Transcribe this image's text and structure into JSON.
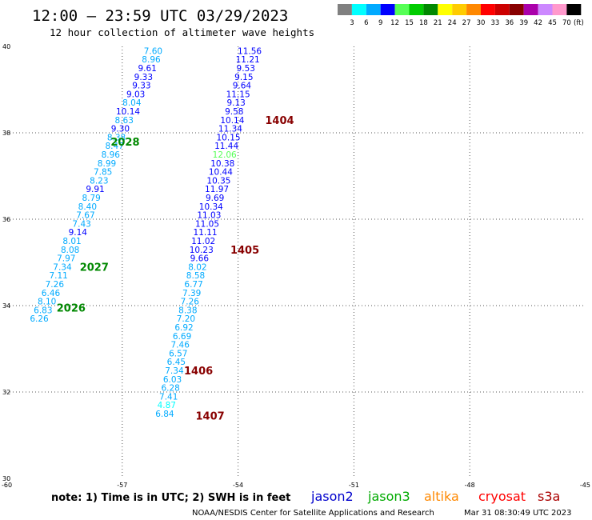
{
  "header": {
    "title": "12:00 — 23:59 UTC 03/29/2023",
    "subtitle": "12 hour collection of altimeter wave heights"
  },
  "colorbar": {
    "labels": [
      "3",
      "6",
      "9",
      "12",
      "15",
      "18",
      "21",
      "24",
      "27",
      "30",
      "33",
      "36",
      "39",
      "42",
      "45",
      "70"
    ],
    "unit": "(ft)",
    "colors": [
      "#808080",
      "#00ffff",
      "#00aaff",
      "#0000ff",
      "#55ff55",
      "#00cc00",
      "#008800",
      "#ffff00",
      "#ffcc00",
      "#ff8800",
      "#ff0000",
      "#cc0000",
      "#880000",
      "#aa00aa",
      "#cc88ff",
      "#ff99cc",
      "#000000"
    ]
  },
  "footer": {
    "note": "note:  1) Time is in UTC; 2) SWH is in feet",
    "credit": "NOAA/NESDIS Center for Satellite Applications and Research",
    "timestamp": "Mar 31 08:30:49 UTC 2023",
    "satellites": [
      {
        "name": "jason2",
        "color": "#0000cc"
      },
      {
        "name": "jason3",
        "color": "#00aa00"
      },
      {
        "name": "altika",
        "color": "#ff8800"
      },
      {
        "name": "cryosat",
        "color": "#ff0000"
      },
      {
        "name": "s3a",
        "color": "#aa0000"
      }
    ]
  },
  "chart_data": {
    "type": "scatter",
    "xlim": [
      -60,
      -45
    ],
    "ylim": [
      30,
      40
    ],
    "x_ticks": [
      "-60",
      "-57",
      "-54",
      "-51",
      "-48",
      "-45"
    ],
    "y_ticks": [
      "30",
      "32",
      "34",
      "36",
      "38",
      "40"
    ],
    "grid": true,
    "series": [
      {
        "track": "A",
        "points": [
          {
            "x": -56.2,
            "y": 39.9,
            "v": "7.60"
          },
          {
            "x": -56.25,
            "y": 39.7,
            "v": "8.96"
          },
          {
            "x": -56.35,
            "y": 39.5,
            "v": "9.61"
          },
          {
            "x": -56.45,
            "y": 39.3,
            "v": "9.33"
          },
          {
            "x": -56.5,
            "y": 39.1,
            "v": "9.33"
          },
          {
            "x": -56.65,
            "y": 38.9,
            "v": "9.03"
          },
          {
            "x": -56.75,
            "y": 38.7,
            "v": "8.04"
          },
          {
            "x": -56.85,
            "y": 38.5,
            "v": "10.14"
          },
          {
            "x": -56.95,
            "y": 38.3,
            "v": "8.63"
          },
          {
            "x": -57.05,
            "y": 38.1,
            "v": "9.30"
          },
          {
            "x": -57.15,
            "y": 37.9,
            "v": "8.38"
          },
          {
            "x": -57.2,
            "y": 37.7,
            "v": "8.47"
          },
          {
            "x": -57.3,
            "y": 37.5,
            "v": "8.96"
          },
          {
            "x": -57.4,
            "y": 37.3,
            "v": "8.99"
          },
          {
            "x": -57.5,
            "y": 37.1,
            "v": "7.85"
          },
          {
            "x": -57.6,
            "y": 36.9,
            "v": "8.23"
          },
          {
            "x": -57.7,
            "y": 36.7,
            "v": "9.91"
          },
          {
            "x": -57.8,
            "y": 36.5,
            "v": "8.79"
          },
          {
            "x": -57.9,
            "y": 36.3,
            "v": "8.40"
          },
          {
            "x": -57.95,
            "y": 36.1,
            "v": "7.67"
          },
          {
            "x": -58.05,
            "y": 35.9,
            "v": "7.43"
          },
          {
            "x": -58.15,
            "y": 35.7,
            "v": "9.14"
          },
          {
            "x": -58.3,
            "y": 35.5,
            "v": "8.01"
          },
          {
            "x": -58.35,
            "y": 35.3,
            "v": "8.08"
          },
          {
            "x": -58.45,
            "y": 35.1,
            "v": "7.97"
          },
          {
            "x": -58.55,
            "y": 34.9,
            "v": "7.34"
          },
          {
            "x": -58.65,
            "y": 34.7,
            "v": "7.11"
          },
          {
            "x": -58.75,
            "y": 34.5,
            "v": "7.26"
          },
          {
            "x": -58.85,
            "y": 34.3,
            "v": "6.46"
          },
          {
            "x": -58.95,
            "y": 34.1,
            "v": "8.10"
          },
          {
            "x": -59.05,
            "y": 33.9,
            "v": "6.83"
          },
          {
            "x": -59.15,
            "y": 33.7,
            "v": "6.26"
          }
        ]
      },
      {
        "track": "B",
        "points": [
          {
            "x": -53.7,
            "y": 39.9,
            "v": "11.56"
          },
          {
            "x": -53.75,
            "y": 39.7,
            "v": "11.21"
          },
          {
            "x": -53.8,
            "y": 39.5,
            "v": "9.53"
          },
          {
            "x": -53.85,
            "y": 39.3,
            "v": "9.15"
          },
          {
            "x": -53.9,
            "y": 39.1,
            "v": "9.64"
          },
          {
            "x": -54.0,
            "y": 38.9,
            "v": "11.15"
          },
          {
            "x": -54.05,
            "y": 38.7,
            "v": "9.13"
          },
          {
            "x": -54.1,
            "y": 38.5,
            "v": "9.58"
          },
          {
            "x": -54.15,
            "y": 38.3,
            "v": "10.14"
          },
          {
            "x": -54.2,
            "y": 38.1,
            "v": "11.34"
          },
          {
            "x": -54.25,
            "y": 37.9,
            "v": "10.15"
          },
          {
            "x": -54.3,
            "y": 37.7,
            "v": "11.44"
          },
          {
            "x": -54.35,
            "y": 37.5,
            "v": "12.06"
          },
          {
            "x": -54.4,
            "y": 37.3,
            "v": "10.38"
          },
          {
            "x": -54.45,
            "y": 37.1,
            "v": "10.44"
          },
          {
            "x": -54.5,
            "y": 36.9,
            "v": "10.35"
          },
          {
            "x": -54.55,
            "y": 36.7,
            "v": "11.97"
          },
          {
            "x": -54.6,
            "y": 36.5,
            "v": "9.69"
          },
          {
            "x": -54.7,
            "y": 36.3,
            "v": "10.34"
          },
          {
            "x": -54.75,
            "y": 36.1,
            "v": "11.03"
          },
          {
            "x": -54.8,
            "y": 35.9,
            "v": "11.05"
          },
          {
            "x": -54.85,
            "y": 35.7,
            "v": "11.11"
          },
          {
            "x": -54.9,
            "y": 35.5,
            "v": "11.02"
          },
          {
            "x": -54.95,
            "y": 35.3,
            "v": "10.23"
          },
          {
            "x": -55.0,
            "y": 35.1,
            "v": "9.66"
          },
          {
            "x": -55.05,
            "y": 34.9,
            "v": "8.02"
          },
          {
            "x": -55.1,
            "y": 34.7,
            "v": "8.58"
          },
          {
            "x": -55.15,
            "y": 34.5,
            "v": "6.77"
          },
          {
            "x": -55.2,
            "y": 34.3,
            "v": "7.39"
          },
          {
            "x": -55.25,
            "y": 34.1,
            "v": "7.26"
          },
          {
            "x": -55.3,
            "y": 33.9,
            "v": "8.38"
          },
          {
            "x": -55.35,
            "y": 33.7,
            "v": "7.20"
          },
          {
            "x": -55.4,
            "y": 33.5,
            "v": "6.92"
          },
          {
            "x": -55.45,
            "y": 33.3,
            "v": "6.69"
          },
          {
            "x": -55.5,
            "y": 33.1,
            "v": "7.46"
          },
          {
            "x": -55.55,
            "y": 32.9,
            "v": "6.57"
          },
          {
            "x": -55.6,
            "y": 32.7,
            "v": "6.45"
          },
          {
            "x": -55.65,
            "y": 32.5,
            "v": "7.34"
          },
          {
            "x": -55.7,
            "y": 32.3,
            "v": "6.03"
          },
          {
            "x": -55.75,
            "y": 32.1,
            "v": "6.28"
          },
          {
            "x": -55.8,
            "y": 31.9,
            "v": "7.41"
          },
          {
            "x": -55.85,
            "y": 31.7,
            "v": "4.87"
          },
          {
            "x": -55.9,
            "y": 31.5,
            "v": "6.84"
          }
        ]
      }
    ],
    "pass_labels": [
      {
        "text": "2028",
        "x": -57.3,
        "y": 37.8,
        "color": "#008800"
      },
      {
        "text": "2027",
        "x": -58.1,
        "y": 34.9,
        "color": "#008800"
      },
      {
        "text": "2026",
        "x": -58.7,
        "y": 33.95,
        "color": "#008800"
      },
      {
        "text": "1404",
        "x": -53.3,
        "y": 38.3,
        "color": "#880000"
      },
      {
        "text": "1405",
        "x": -54.2,
        "y": 35.3,
        "color": "#880000"
      },
      {
        "text": "1406",
        "x": -55.4,
        "y": 32.5,
        "color": "#880000"
      },
      {
        "text": "1407",
        "x": -55.1,
        "y": 31.45,
        "color": "#880000"
      }
    ]
  }
}
